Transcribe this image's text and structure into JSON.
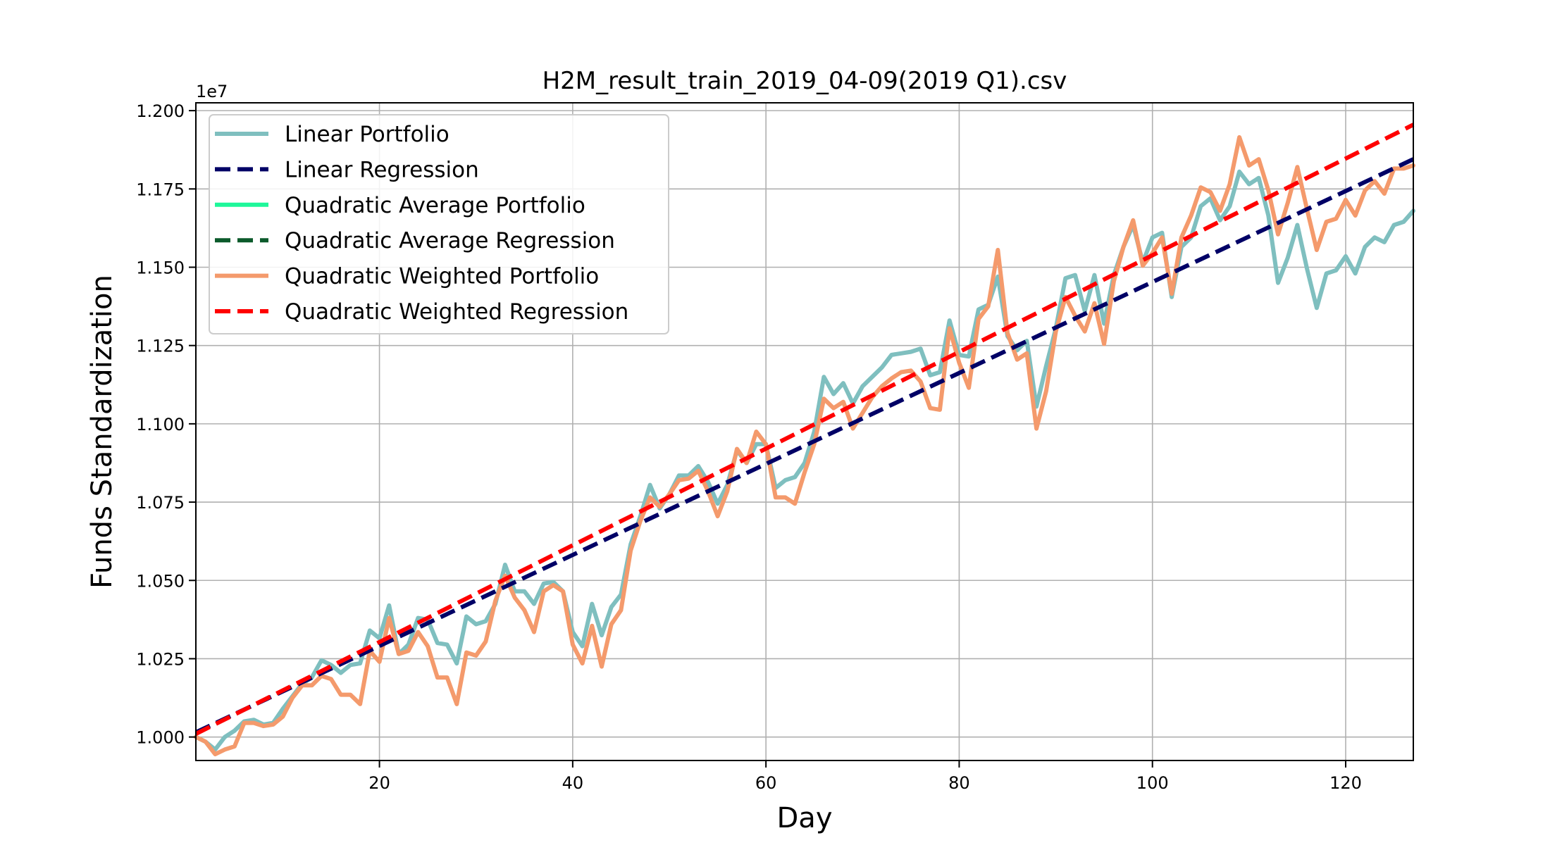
{
  "chart_data": {
    "type": "line",
    "title": "H2M_result_train_2019_04-09(2019 Q1).csv",
    "xlabel": "Day",
    "ylabel": "Funds Standardization",
    "y_offset_label": "1e7",
    "xlim": [
      1,
      127
    ],
    "ylim": [
      0.9925,
      1.2025
    ],
    "x_ticks": [
      20,
      40,
      60,
      80,
      100,
      120
    ],
    "x_tick_labels": [
      "20",
      "40",
      "60",
      "80",
      "100",
      "120"
    ],
    "y_ticks": [
      1.0,
      1.025,
      1.05,
      1.075,
      1.1,
      1.125,
      1.15,
      1.175,
      1.2
    ],
    "y_tick_labels": [
      "1.000",
      "1.025",
      "1.050",
      "1.075",
      "1.100",
      "1.125",
      "1.150",
      "1.175",
      "1.200"
    ],
    "grid": true,
    "legend_position": "upper-left",
    "series": [
      {
        "name": "Linear Portfolio",
        "color": "#7fbfbf",
        "style": "solid",
        "points": [
          [
            1,
            1.0
          ],
          [
            2,
            0.9985
          ],
          [
            3,
            0.996
          ],
          [
            4,
            1.0
          ],
          [
            5,
            1.002
          ],
          [
            6,
            1.005
          ],
          [
            7,
            1.0055
          ],
          [
            8,
            1.004
          ],
          [
            9,
            1.0045
          ],
          [
            10,
            1.009
          ],
          [
            11,
            1.013
          ],
          [
            12,
            1.017
          ],
          [
            13,
            1.019
          ],
          [
            14,
            1.0245
          ],
          [
            15,
            1.023
          ],
          [
            16,
            1.0205
          ],
          [
            17,
            1.023
          ],
          [
            18,
            1.0235
          ],
          [
            19,
            1.034
          ],
          [
            20,
            1.0315
          ],
          [
            21,
            1.042
          ],
          [
            22,
            1.0265
          ],
          [
            23,
            1.0295
          ],
          [
            24,
            1.038
          ],
          [
            25,
            1.0375
          ],
          [
            26,
            1.03
          ],
          [
            27,
            1.0295
          ],
          [
            28,
            1.0235
          ],
          [
            29,
            1.0385
          ],
          [
            30,
            1.036
          ],
          [
            31,
            1.037
          ],
          [
            32,
            1.0425
          ],
          [
            33,
            1.055
          ],
          [
            34,
            1.0465
          ],
          [
            35,
            1.0465
          ],
          [
            36,
            1.0425
          ],
          [
            37,
            1.049
          ],
          [
            38,
            1.0495
          ],
          [
            39,
            1.0465
          ],
          [
            40,
            1.0335
          ],
          [
            41,
            1.029
          ],
          [
            42,
            1.0425
          ],
          [
            43,
            1.0325
          ],
          [
            44,
            1.0415
          ],
          [
            45,
            1.0455
          ],
          [
            46,
            1.0615
          ],
          [
            47,
            1.0705
          ],
          [
            48,
            1.0805
          ],
          [
            49,
            1.073
          ],
          [
            50,
            1.0775
          ],
          [
            51,
            1.0835
          ],
          [
            52,
            1.0835
          ],
          [
            53,
            1.0865
          ],
          [
            54,
            1.0815
          ],
          [
            55,
            1.0745
          ],
          [
            56,
            1.0805
          ],
          [
            57,
            1.0915
          ],
          [
            58,
            1.0875
          ],
          [
            59,
            1.0935
          ],
          [
            60,
            1.0935
          ],
          [
            61,
            1.0795
          ],
          [
            62,
            1.082
          ],
          [
            63,
            1.083
          ],
          [
            64,
            1.0875
          ],
          [
            65,
            1.0975
          ],
          [
            66,
            1.115
          ],
          [
            67,
            1.1095
          ],
          [
            68,
            1.113
          ],
          [
            69,
            1.1065
          ],
          [
            70,
            1.112
          ],
          [
            71,
            1.115
          ],
          [
            72,
            1.118
          ],
          [
            73,
            1.122
          ],
          [
            74,
            1.1225
          ],
          [
            75,
            1.123
          ],
          [
            76,
            1.124
          ],
          [
            77,
            1.1155
          ],
          [
            78,
            1.1165
          ],
          [
            79,
            1.133
          ],
          [
            80,
            1.122
          ],
          [
            81,
            1.1215
          ],
          [
            82,
            1.1365
          ],
          [
            83,
            1.138
          ],
          [
            84,
            1.147
          ],
          [
            85,
            1.128
          ],
          [
            86,
            1.1235
          ],
          [
            87,
            1.1265
          ],
          [
            88,
            1.1055
          ],
          [
            89,
            1.1185
          ],
          [
            90,
            1.1305
          ],
          [
            91,
            1.1465
          ],
          [
            92,
            1.1475
          ],
          [
            93,
            1.136
          ],
          [
            94,
            1.1475
          ],
          [
            95,
            1.132
          ],
          [
            96,
            1.1475
          ],
          [
            97,
            1.1565
          ],
          [
            98,
            1.1635
          ],
          [
            99,
            1.1515
          ],
          [
            100,
            1.1595
          ],
          [
            101,
            1.161
          ],
          [
            102,
            1.1405
          ],
          [
            103,
            1.1565
          ],
          [
            104,
            1.1595
          ],
          [
            105,
            1.1695
          ],
          [
            106,
            1.172
          ],
          [
            107,
            1.165
          ],
          [
            108,
            1.1695
          ],
          [
            109,
            1.1805
          ],
          [
            110,
            1.1765
          ],
          [
            111,
            1.1785
          ],
          [
            112,
            1.1665
          ],
          [
            113,
            1.145
          ],
          [
            114,
            1.153
          ],
          [
            115,
            1.1635
          ],
          [
            116,
            1.1495
          ],
          [
            117,
            1.137
          ],
          [
            118,
            1.148
          ],
          [
            119,
            1.149
          ],
          [
            120,
            1.1535
          ],
          [
            121,
            1.148
          ],
          [
            122,
            1.1565
          ],
          [
            123,
            1.1595
          ],
          [
            124,
            1.158
          ],
          [
            125,
            1.1635
          ],
          [
            126,
            1.1645
          ],
          [
            127,
            1.168
          ]
        ]
      },
      {
        "name": "Linear Regression",
        "color": "#000066",
        "style": "dashed",
        "points": [
          [
            1,
            1.0015
          ],
          [
            127,
            1.1845
          ]
        ]
      },
      {
        "name": "Quadratic Average Portfolio",
        "color": "#1ef79a",
        "style": "solid",
        "points": []
      },
      {
        "name": "Quadratic Average Regression",
        "color": "#0b5a2b",
        "style": "dashed",
        "points": []
      },
      {
        "name": "Quadratic Weighted Portfolio",
        "color": "#f49a6c",
        "style": "solid",
        "points": [
          [
            1,
            1.0
          ],
          [
            2,
            0.9985
          ],
          [
            3,
            0.9945
          ],
          [
            4,
            0.996
          ],
          [
            5,
            0.997
          ],
          [
            6,
            1.0045
          ],
          [
            7,
            1.0045
          ],
          [
            8,
            1.0035
          ],
          [
            9,
            1.004
          ],
          [
            10,
            1.0065
          ],
          [
            11,
            1.0125
          ],
          [
            12,
            1.0165
          ],
          [
            13,
            1.0165
          ],
          [
            14,
            1.0195
          ],
          [
            15,
            1.0185
          ],
          [
            16,
            1.0135
          ],
          [
            17,
            1.0135
          ],
          [
            18,
            1.0105
          ],
          [
            19,
            1.0275
          ],
          [
            20,
            1.024
          ],
          [
            21,
            1.038
          ],
          [
            22,
            1.0265
          ],
          [
            23,
            1.0275
          ],
          [
            24,
            1.0335
          ],
          [
            25,
            1.029
          ],
          [
            26,
            1.019
          ],
          [
            27,
            1.019
          ],
          [
            28,
            1.0105
          ],
          [
            29,
            1.027
          ],
          [
            30,
            1.026
          ],
          [
            31,
            1.0305
          ],
          [
            32,
            1.0435
          ],
          [
            33,
            1.0515
          ],
          [
            34,
            1.0445
          ],
          [
            35,
            1.0405
          ],
          [
            36,
            1.0335
          ],
          [
            37,
            1.0465
          ],
          [
            38,
            1.0485
          ],
          [
            39,
            1.0465
          ],
          [
            40,
            1.0295
          ],
          [
            41,
            1.0235
          ],
          [
            42,
            1.0355
          ],
          [
            43,
            1.0225
          ],
          [
            44,
            1.036
          ],
          [
            45,
            1.0405
          ],
          [
            46,
            1.0595
          ],
          [
            47,
            1.069
          ],
          [
            48,
            1.0765
          ],
          [
            49,
            1.0735
          ],
          [
            50,
            1.0775
          ],
          [
            51,
            1.082
          ],
          [
            52,
            1.0825
          ],
          [
            53,
            1.085
          ],
          [
            54,
            1.0785
          ],
          [
            55,
            1.0705
          ],
          [
            56,
            1.0785
          ],
          [
            57,
            1.092
          ],
          [
            58,
            1.0875
          ],
          [
            59,
            1.0975
          ],
          [
            60,
            1.0935
          ],
          [
            61,
            1.0765
          ],
          [
            62,
            1.0765
          ],
          [
            63,
            1.0745
          ],
          [
            64,
            1.0845
          ],
          [
            65,
            1.0935
          ],
          [
            66,
            1.108
          ],
          [
            67,
            1.105
          ],
          [
            68,
            1.107
          ],
          [
            69,
            1.0985
          ],
          [
            70,
            1.1035
          ],
          [
            71,
            1.1085
          ],
          [
            72,
            1.112
          ],
          [
            73,
            1.1145
          ],
          [
            74,
            1.1165
          ],
          [
            75,
            1.117
          ],
          [
            76,
            1.1135
          ],
          [
            77,
            1.105
          ],
          [
            78,
            1.1045
          ],
          [
            79,
            1.1305
          ],
          [
            80,
            1.1195
          ],
          [
            81,
            1.1115
          ],
          [
            82,
            1.1335
          ],
          [
            83,
            1.1375
          ],
          [
            84,
            1.1555
          ],
          [
            85,
            1.129
          ],
          [
            86,
            1.1205
          ],
          [
            87,
            1.1225
          ],
          [
            88,
            1.0985
          ],
          [
            89,
            1.1105
          ],
          [
            90,
            1.1295
          ],
          [
            91,
            1.1405
          ],
          [
            92,
            1.1345
          ],
          [
            93,
            1.1295
          ],
          [
            94,
            1.1385
          ],
          [
            95,
            1.1255
          ],
          [
            96,
            1.1455
          ],
          [
            97,
            1.1565
          ],
          [
            98,
            1.165
          ],
          [
            99,
            1.1505
          ],
          [
            100,
            1.1545
          ],
          [
            101,
            1.1595
          ],
          [
            102,
            1.1415
          ],
          [
            103,
            1.1595
          ],
          [
            104,
            1.1665
          ],
          [
            105,
            1.1755
          ],
          [
            106,
            1.174
          ],
          [
            107,
            1.168
          ],
          [
            108,
            1.1765
          ],
          [
            109,
            1.1915
          ],
          [
            110,
            1.1825
          ],
          [
            111,
            1.1845
          ],
          [
            112,
            1.1745
          ],
          [
            113,
            1.1605
          ],
          [
            114,
            1.1705
          ],
          [
            115,
            1.182
          ],
          [
            116,
            1.1685
          ],
          [
            117,
            1.1555
          ],
          [
            118,
            1.1645
          ],
          [
            119,
            1.1655
          ],
          [
            120,
            1.1715
          ],
          [
            121,
            1.1665
          ],
          [
            122,
            1.1745
          ],
          [
            123,
            1.1775
          ],
          [
            124,
            1.1735
          ],
          [
            125,
            1.1815
          ],
          [
            126,
            1.1815
          ],
          [
            127,
            1.1825
          ]
        ]
      },
      {
        "name": "Quadratic Weighted Regression",
        "color": "#ff0000",
        "style": "dashed",
        "points": [
          [
            1,
            1.001
          ],
          [
            127,
            1.1955
          ]
        ]
      }
    ]
  }
}
